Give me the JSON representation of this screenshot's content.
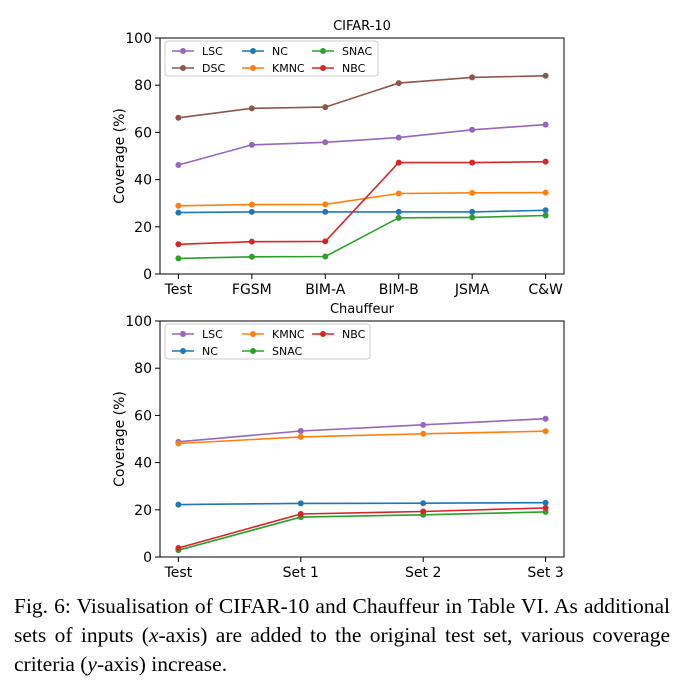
{
  "chart_data": [
    {
      "type": "line",
      "title": "CIFAR-10",
      "xlabel": "",
      "ylabel": "Coverage (%)",
      "ylim": [
        0,
        100
      ],
      "yticks": [
        0,
        20,
        40,
        60,
        80,
        100
      ],
      "grid": false,
      "legend_position": "upper-left",
      "categories": [
        "Test",
        "FGSM",
        "BIM-A",
        "BIM-B",
        "JSMA",
        "C&W"
      ],
      "series": [
        {
          "name": "LSC",
          "color": "#9467bd",
          "values": [
            46.2,
            54.7,
            55.8,
            57.8,
            61.1,
            63.3
          ]
        },
        {
          "name": "DSC",
          "color": "#8c564b",
          "values": [
            66.2,
            70.2,
            70.7,
            80.9,
            83.3,
            84.0
          ]
        },
        {
          "name": "NC",
          "color": "#1f77b4",
          "values": [
            26.0,
            26.3,
            26.3,
            26.3,
            26.3,
            27.0
          ]
        },
        {
          "name": "KMNC",
          "color": "#ff7f0e",
          "values": [
            28.9,
            29.4,
            29.5,
            34.1,
            34.4,
            34.5
          ]
        },
        {
          "name": "SNAC",
          "color": "#2ca02c",
          "values": [
            6.6,
            7.3,
            7.4,
            23.8,
            24.0,
            24.8
          ]
        },
        {
          "name": "NBC",
          "color": "#d62728",
          "values": [
            12.6,
            13.7,
            13.8,
            47.2,
            47.2,
            47.6
          ]
        }
      ]
    },
    {
      "type": "line",
      "title": "Chauffeur",
      "xlabel": "",
      "ylabel": "Coverage (%)",
      "ylim": [
        0,
        100
      ],
      "yticks": [
        0,
        20,
        40,
        60,
        80,
        100
      ],
      "grid": false,
      "legend_position": "upper-left",
      "categories": [
        "Test",
        "Set 1",
        "Set 2",
        "Set 3"
      ],
      "series": [
        {
          "name": "LSC",
          "color": "#9467bd",
          "values": [
            48.8,
            53.4,
            56.0,
            58.6
          ]
        },
        {
          "name": "NC",
          "color": "#1f77b4",
          "values": [
            22.2,
            22.7,
            22.8,
            23.0
          ]
        },
        {
          "name": "KMNC",
          "color": "#ff7f0e",
          "values": [
            48.1,
            50.9,
            52.2,
            53.3
          ]
        },
        {
          "name": "SNAC",
          "color": "#2ca02c",
          "values": [
            2.9,
            16.9,
            17.9,
            19.1
          ]
        },
        {
          "name": "NBC",
          "color": "#d62728",
          "values": [
            3.8,
            18.2,
            19.3,
            20.8
          ]
        }
      ]
    }
  ],
  "caption": {
    "part1": "Fig. 6: Visualisation of CIFAR-10 and Chauffeur in Table VI. As additional sets of inputs (",
    "var_x": "x",
    "part2": "-axis) are added to the original test set, various coverage criteria (",
    "var_y": "y",
    "part3": "-axis) increase."
  }
}
